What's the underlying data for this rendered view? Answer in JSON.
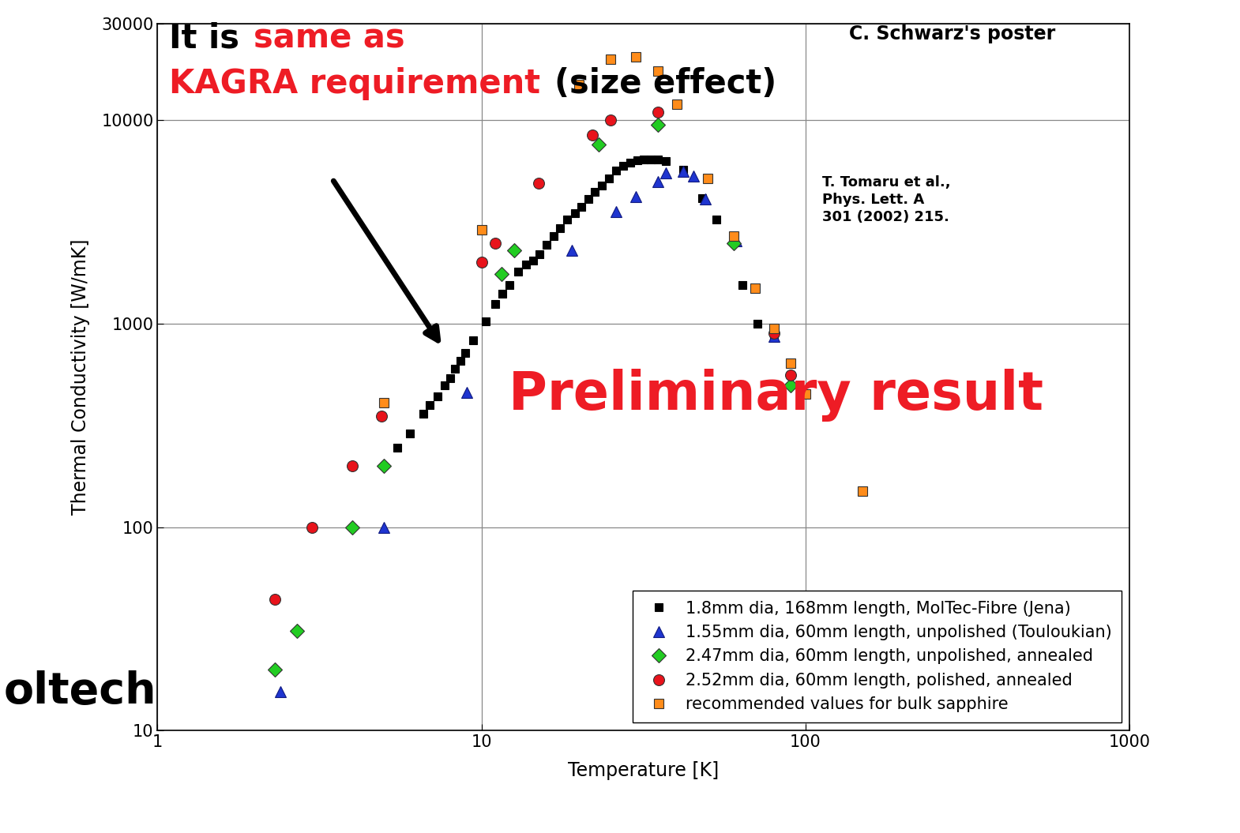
{
  "chart_data": {
    "type": "scatter",
    "x_label": "Temperature [K]",
    "y_label": "Thermal Conductivity [W/mK]",
    "log": true,
    "grid": true,
    "legend": "lower right",
    "xlim": [
      1,
      1000
    ],
    "ylim": [
      10,
      30000
    ],
    "xticks": [
      1,
      10,
      100,
      1000
    ],
    "yticks": [
      10,
      100,
      1000,
      10000,
      30000
    ],
    "series": [
      {
        "name": "1.8mm dia, 168mm length, MolTec-Fibre (Jena)",
        "color": "#000000",
        "marker": "square",
        "x": [
          5.5,
          6.0,
          6.6,
          6.9,
          7.3,
          7.7,
          8.0,
          8.3,
          8.6,
          8.9,
          9.4,
          10.3,
          11.0,
          11.6,
          12.2,
          13.0,
          13.7,
          14.4,
          15.1,
          15.9,
          16.7,
          17.5,
          18.4,
          19.4,
          20.3,
          21.4,
          22.4,
          23.5,
          24.7,
          26.0,
          27.3,
          28.7,
          30.2,
          31.7,
          33.3,
          35,
          37,
          42,
          48,
          53,
          64,
          71,
          80
        ],
        "values": [
          245,
          290,
          360,
          400,
          440,
          500,
          540,
          600,
          660,
          720,
          830,
          1030,
          1250,
          1400,
          1550,
          1800,
          1950,
          2050,
          2200,
          2450,
          2700,
          2950,
          3250,
          3500,
          3750,
          4100,
          4450,
          4800,
          5200,
          5650,
          6000,
          6200,
          6350,
          6400,
          6450,
          6450,
          6300,
          5700,
          4150,
          3250,
          1550,
          1000,
          870
        ]
      },
      {
        "name": "1.55mm dia, 60mm length, unpolished (Touloukian)",
        "color": "#1f35d0",
        "marker": "triangle",
        "x": [
          2.4,
          5.0,
          9.0,
          19,
          26,
          30,
          35,
          37,
          42,
          45,
          49,
          61,
          80
        ],
        "values": [
          15.5,
          100,
          460,
          2300,
          3550,
          4200,
          5000,
          5500,
          5600,
          5300,
          4100,
          2550,
          870
        ]
      },
      {
        "name": "2.47mm dia, 60mm length, unpolished, annealed",
        "color": "#22cc22",
        "marker": "diamond",
        "x": [
          2.3,
          2.7,
          4.0,
          5.0,
          11.5,
          12.6,
          23,
          35,
          60,
          90
        ],
        "values": [
          20,
          31,
          100,
          200,
          1750,
          2300,
          7600,
          9500,
          2500,
          500
        ]
      },
      {
        "name": "2.52mm dia, 60mm length, polished, annealed",
        "color": "#e8131b",
        "marker": "circle",
        "x": [
          2.3,
          3.0,
          4.0,
          4.9,
          10,
          11,
          15,
          22,
          25,
          35,
          80,
          90
        ],
        "values": [
          44,
          100,
          200,
          350,
          2000,
          2500,
          4900,
          8500,
          10000,
          11000,
          900,
          560
        ]
      },
      {
        "name": "recommended values for bulk sapphire",
        "color": "#ff8c1a",
        "marker": "square",
        "x": [
          5,
          10,
          20,
          25,
          30,
          35,
          40,
          50,
          60,
          70,
          80,
          90,
          100,
          150
        ],
        "values": [
          410,
          2900,
          15000,
          20000,
          20500,
          17500,
          12000,
          5200,
          2700,
          1500,
          950,
          640,
          450,
          150
        ]
      }
    ],
    "annotations": [
      {
        "lines": [
          [
            {
              "text": "It is",
              "color": "#000000"
            },
            {
              "text": "same as",
              "color": "#ee1c25"
            }
          ],
          [
            {
              "text": "KAGRA requirement",
              "color": "#ee1c25"
            },
            {
              "text": "(size effect)",
              "color": "#000000"
            }
          ]
        ]
      },
      {
        "text": "C. Schwarz's poster",
        "color": "#000000"
      },
      {
        "text": "T. Tomaru et al.,\nPhys. Lett. A\n301 (2002) 215.",
        "color": "#000000"
      },
      {
        "text": "Preliminary result",
        "color": "#ee1c25"
      },
      {
        "text": "oltech",
        "color": "#000000"
      }
    ]
  }
}
